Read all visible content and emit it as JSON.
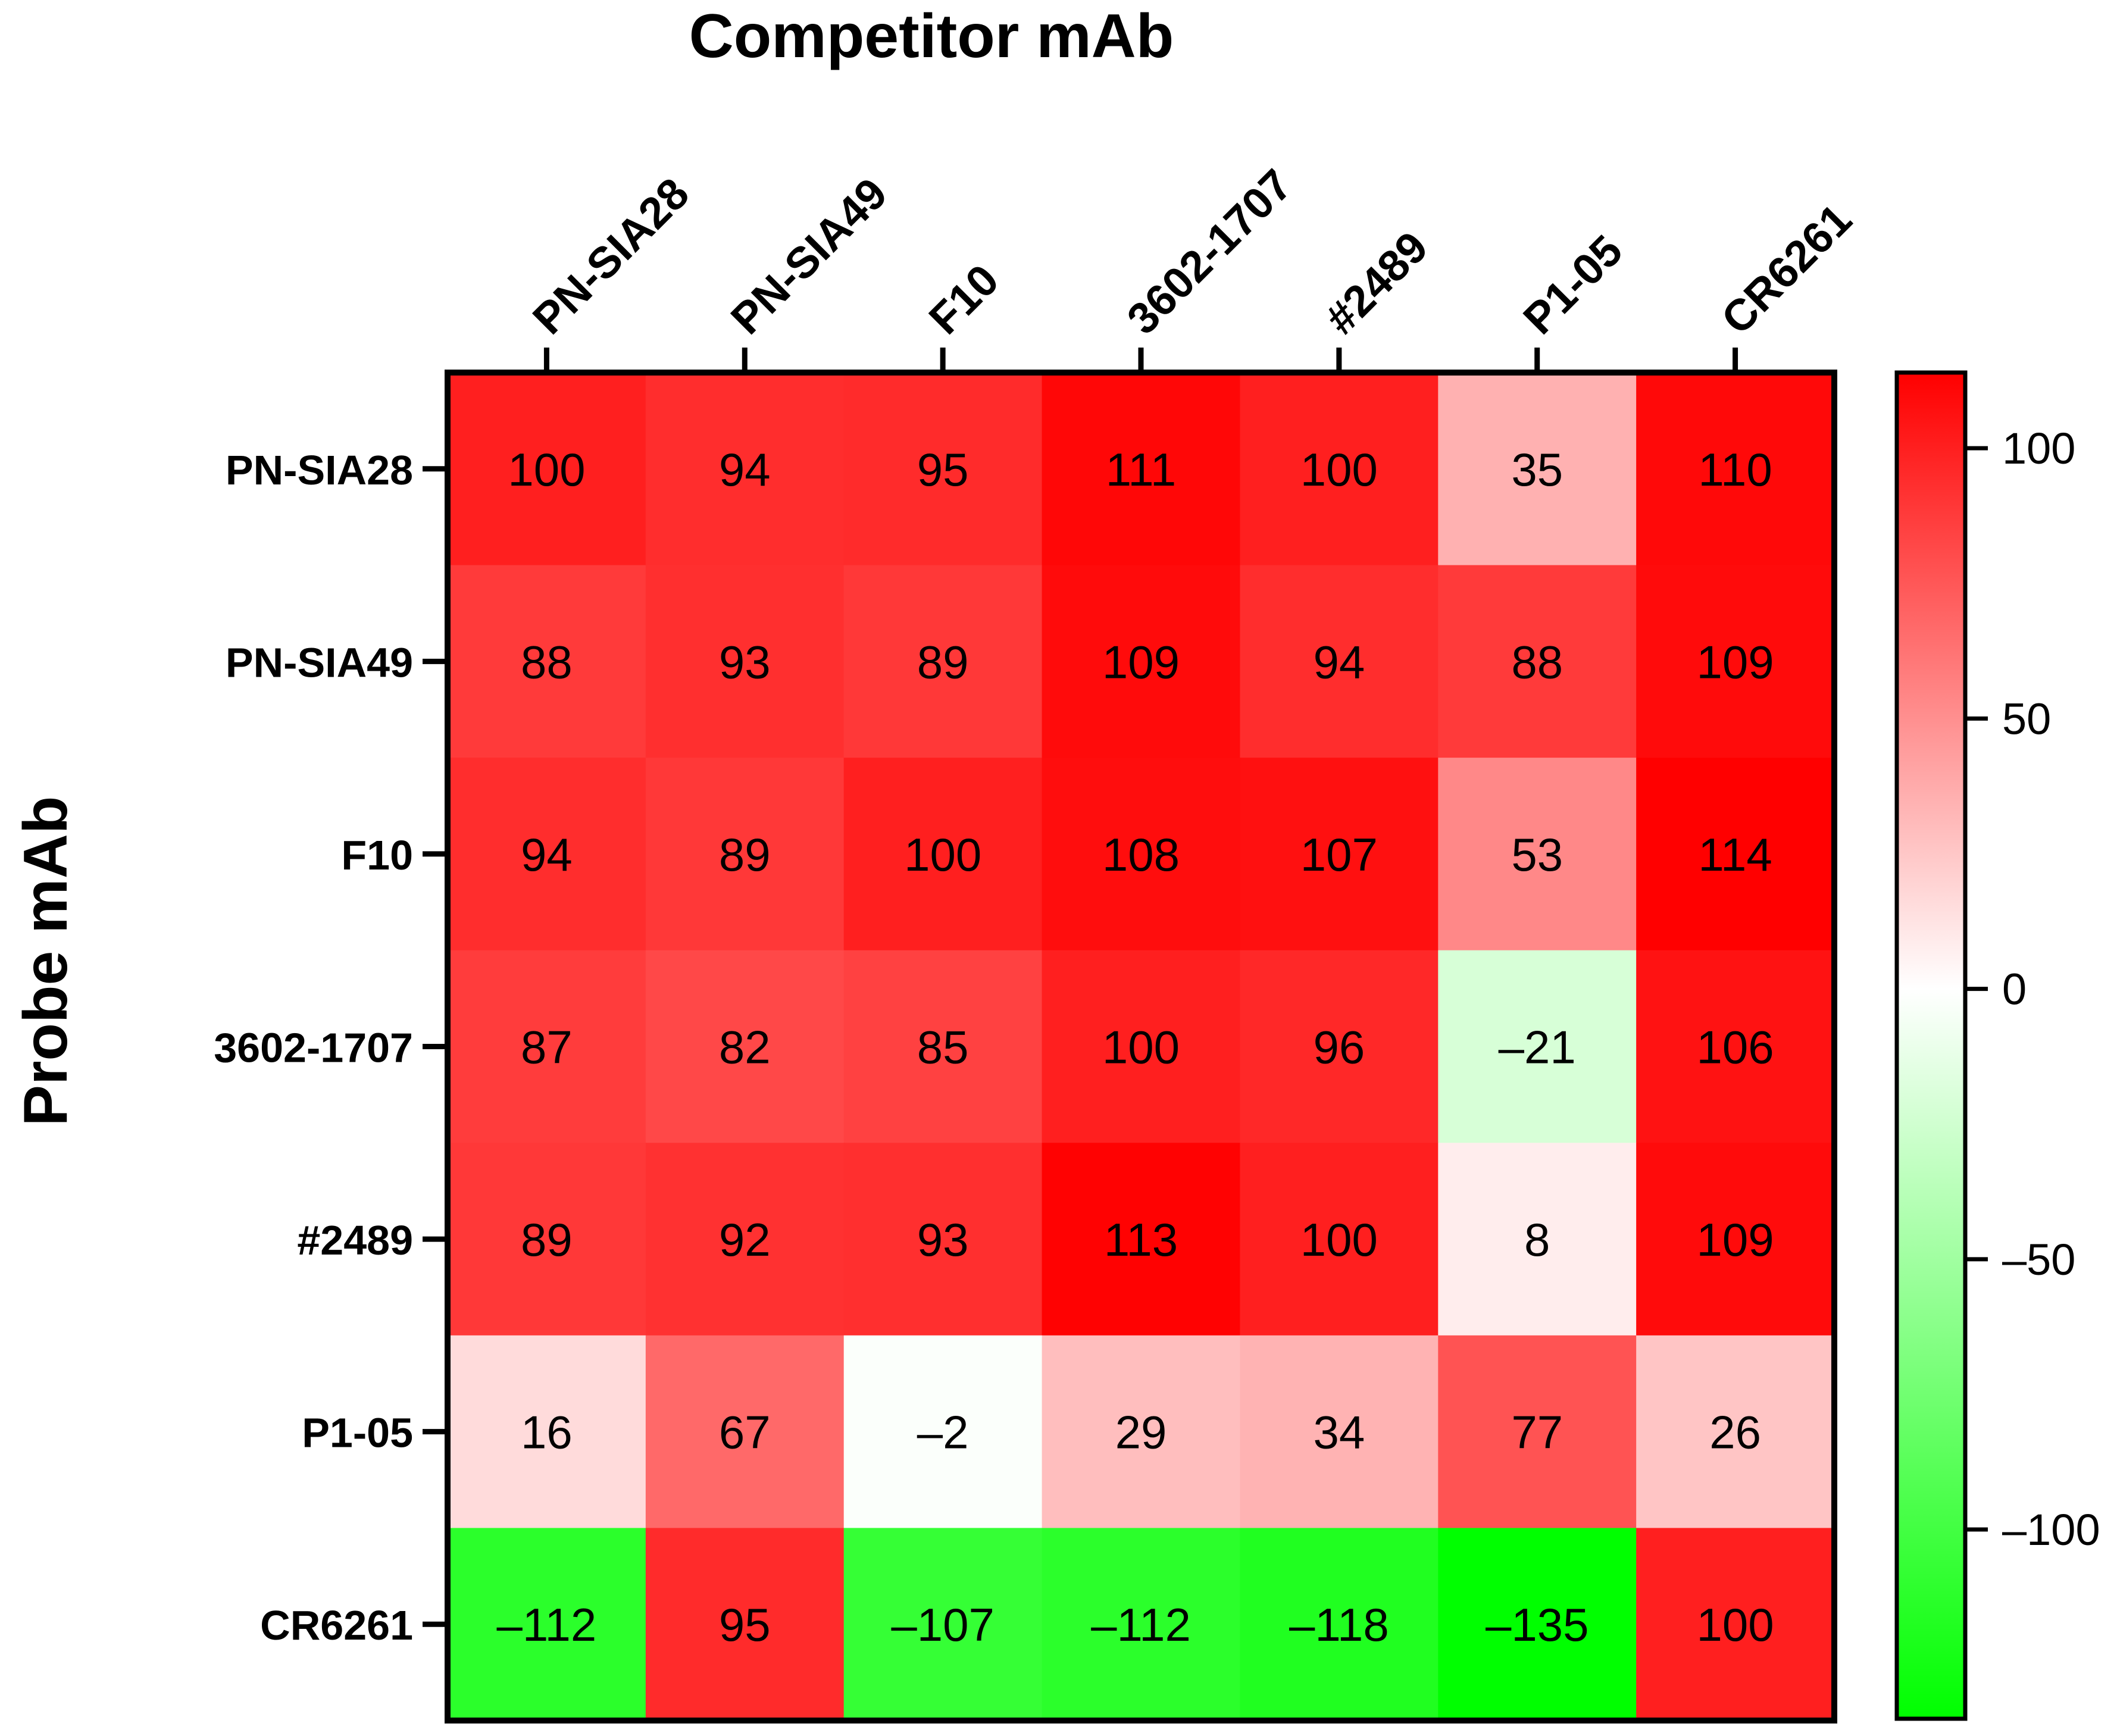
{
  "chart_data": {
    "type": "heatmap",
    "title": "Competitor mAb",
    "xlabel": "",
    "ylabel": "Probe mAb",
    "x_position": "top",
    "x_categories": [
      "PN-SIA28",
      "PN-SIA49",
      "F10",
      "3602-1707",
      "#2489",
      "P1-05",
      "CR6261"
    ],
    "y_categories": [
      "PN-SIA28",
      "PN-SIA49",
      "F10",
      "3602-1707",
      "#2489",
      "P1-05",
      "CR6261"
    ],
    "values": [
      [
        100,
        94,
        95,
        111,
        100,
        35,
        110
      ],
      [
        88,
        93,
        89,
        109,
        94,
        88,
        109
      ],
      [
        94,
        89,
        100,
        108,
        107,
        53,
        114
      ],
      [
        87,
        82,
        85,
        100,
        96,
        -21,
        106
      ],
      [
        89,
        92,
        93,
        113,
        100,
        8,
        109
      ],
      [
        16,
        67,
        -2,
        29,
        34,
        77,
        26
      ],
      [
        -112,
        95,
        -107,
        -112,
        -118,
        -135,
        100
      ]
    ],
    "value_labels": [
      [
        "100",
        "94",
        "95",
        "111",
        "100",
        "35",
        "110"
      ],
      [
        "88",
        "93",
        "89",
        "109",
        "94",
        "88",
        "109"
      ],
      [
        "94",
        "89",
        "100",
        "108",
        "107",
        "53",
        "114"
      ],
      [
        "87",
        "82",
        "85",
        "100",
        "96",
        "–21",
        "106"
      ],
      [
        "89",
        "92",
        "93",
        "113",
        "100",
        "8",
        "109"
      ],
      [
        "16",
        "67",
        "–2",
        "29",
        "34",
        "77",
        "26"
      ],
      [
        "–112",
        "95",
        "–107",
        "–112",
        "–118",
        "–135",
        "100"
      ]
    ],
    "colorbar": {
      "min": -135,
      "max": 114,
      "ticks": [
        100,
        50,
        0,
        -50,
        -100
      ],
      "tick_labels": [
        "100",
        "50",
        "0",
        "–50",
        "–100"
      ],
      "colors": {
        "high": "#ff0000",
        "mid": "#ffffff",
        "low": "#00ff00"
      }
    },
    "grid": false,
    "legend": "colorbar-right"
  }
}
